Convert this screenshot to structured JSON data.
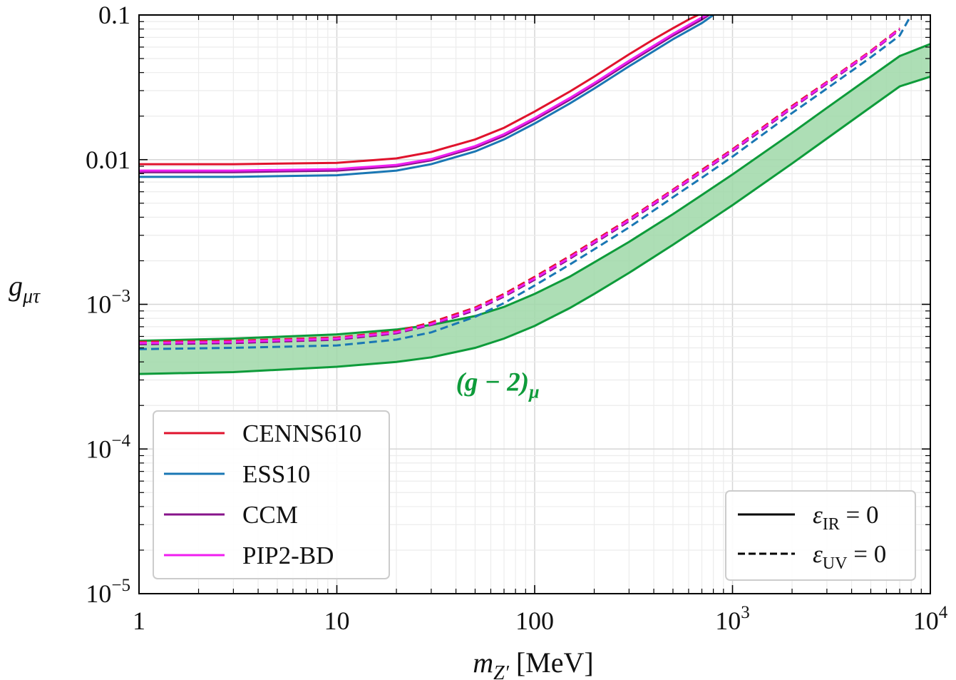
{
  "chart_data": {
    "type": "line",
    "xscale": "log",
    "yscale": "log",
    "xlim": [
      1,
      10000
    ],
    "ylim": [
      1e-05,
      0.1
    ],
    "grid": true,
    "xlabel": {
      "symbol": "m",
      "sub": "Z′",
      "unit": " [MeV]"
    },
    "ylabel": {
      "symbol": "g",
      "sub": "μτ"
    },
    "xtick_labels": [
      {
        "value": 1,
        "base": "1",
        "exp": ""
      },
      {
        "value": 10,
        "base": "10",
        "exp": ""
      },
      {
        "value": 100,
        "base": "100",
        "exp": ""
      },
      {
        "value": 1000,
        "base": "10",
        "exp": "3"
      },
      {
        "value": 10000,
        "base": "10",
        "exp": "4"
      }
    ],
    "ytick_labels": [
      {
        "value": 1e-05,
        "base": "10",
        "exp": "−5"
      },
      {
        "value": 0.0001,
        "base": "10",
        "exp": "−4"
      },
      {
        "value": 0.001,
        "base": "10",
        "exp": "−3"
      },
      {
        "value": 0.01,
        "base": "0.01",
        "exp": ""
      },
      {
        "value": 0.1,
        "base": "0.1",
        "exp": ""
      }
    ],
    "band": {
      "name": "(g − 2)μ",
      "label_main": "(g − 2)",
      "label_sub": "μ",
      "label_at": [
        40,
        0.00029
      ],
      "color": "#0e9b3a",
      "fill": "#9fd8a8",
      "x": [
        1,
        3,
        10,
        20,
        30,
        50,
        70,
        100,
        150,
        200,
        300,
        500,
        700,
        1000,
        2000,
        3000,
        5000,
        7000,
        10000
      ],
      "upper": [
        0.00056,
        0.00058,
        0.00062,
        0.00067,
        0.00072,
        0.00083,
        0.00096,
        0.00118,
        0.00155,
        0.00195,
        0.0027,
        0.0042,
        0.0057,
        0.0079,
        0.0153,
        0.0228,
        0.0375,
        0.052,
        0.063
      ],
      "lower": [
        0.00033,
        0.00034,
        0.00037,
        0.0004,
        0.00043,
        0.0005,
        0.00058,
        0.00071,
        0.00094,
        0.00118,
        0.00165,
        0.00258,
        0.0035,
        0.00485,
        0.0094,
        0.014,
        0.0231,
        0.0321,
        0.0375
      ]
    },
    "series": [
      {
        "name": "CENNS610",
        "color": "#e0132d",
        "solid": {
          "x": [
            1,
            3,
            10,
            20,
            30,
            50,
            70,
            100,
            150,
            200,
            300,
            400,
            500,
            600,
            700
          ],
          "y": [
            0.0093,
            0.0093,
            0.0095,
            0.0102,
            0.0113,
            0.0138,
            0.0166,
            0.0215,
            0.0295,
            0.0375,
            0.0535,
            0.068,
            0.081,
            0.093,
            0.103
          ]
        },
        "dashed": {
          "x": [
            1,
            3,
            10,
            20,
            30,
            50,
            70,
            100,
            150,
            200,
            300,
            500,
            700,
            1000,
            2000,
            3000,
            5000,
            7000
          ],
          "y": [
            0.00055,
            0.00056,
            0.00059,
            0.00065,
            0.00075,
            0.00095,
            0.00118,
            0.00155,
            0.00215,
            0.00275,
            0.0039,
            0.0062,
            0.0085,
            0.0118,
            0.0235,
            0.0345,
            0.0565,
            0.081
          ]
        }
      },
      {
        "name": "ESS10",
        "color": "#1a77b4",
        "solid": {
          "x": [
            1,
            3,
            10,
            20,
            30,
            50,
            70,
            100,
            150,
            200,
            300,
            500,
            700,
            800
          ],
          "y": [
            0.0076,
            0.0076,
            0.0078,
            0.0084,
            0.0093,
            0.0114,
            0.0138,
            0.0178,
            0.0244,
            0.031,
            0.0442,
            0.068,
            0.088,
            0.1
          ]
        },
        "dashed": {
          "x": [
            1,
            3,
            10,
            20,
            30,
            50,
            70,
            100,
            150,
            200,
            300,
            500,
            700,
            1000,
            2000,
            3000,
            5000,
            7000,
            8000
          ],
          "y": [
            0.00049,
            0.0005,
            0.00052,
            0.00057,
            0.00064,
            0.00082,
            0.00102,
            0.00135,
            0.00188,
            0.0024,
            0.0034,
            0.0055,
            0.0075,
            0.0105,
            0.021,
            0.031,
            0.051,
            0.072,
            0.1
          ]
        }
      },
      {
        "name": "CCM",
        "color": "#87138a",
        "solid": {
          "x": [
            1,
            3,
            10,
            20,
            30,
            50,
            70,
            100,
            150,
            200,
            300,
            500,
            700,
            760
          ],
          "y": [
            0.0082,
            0.0082,
            0.0084,
            0.009,
            0.0099,
            0.0121,
            0.0146,
            0.0189,
            0.0259,
            0.0329,
            0.0469,
            0.072,
            0.093,
            0.1
          ]
        },
        "dashed": {
          "x": [
            1,
            3,
            10,
            20,
            30,
            50,
            70,
            100,
            150,
            200,
            300,
            500,
            700,
            1000,
            2000,
            3000,
            5000,
            7000
          ],
          "y": [
            0.00053,
            0.00054,
            0.00057,
            0.00063,
            0.00072,
            0.00091,
            0.00113,
            0.00148,
            0.00206,
            0.00264,
            0.00375,
            0.006,
            0.0082,
            0.0114,
            0.0227,
            0.0335,
            0.055,
            0.079
          ]
        }
      },
      {
        "name": "PIP2-BD",
        "color": "#f01ef0",
        "solid": {
          "x": [
            1,
            3,
            10,
            20,
            30,
            50,
            70,
            100,
            150,
            200,
            300,
            500,
            700,
            740
          ],
          "y": [
            0.0084,
            0.0084,
            0.0086,
            0.0092,
            0.0101,
            0.0124,
            0.015,
            0.0194,
            0.0266,
            0.0338,
            0.0482,
            0.074,
            0.096,
            0.1
          ]
        },
        "dashed": {
          "x": [
            1,
            3,
            10,
            20,
            30,
            50,
            70,
            100,
            150,
            200,
            300,
            500,
            700,
            1000,
            2000,
            3000,
            5000,
            7000
          ],
          "y": [
            0.00054,
            0.00055,
            0.00058,
            0.00064,
            0.00073,
            0.00093,
            0.00115,
            0.00151,
            0.0021,
            0.00269,
            0.00382,
            0.0061,
            0.0083,
            0.0116,
            0.023,
            0.034,
            0.0558,
            0.08
          ]
        }
      }
    ],
    "legend_series": {
      "position": "lower-left",
      "entries": [
        "CENNS610",
        "ESS10",
        "CCM",
        "PIP2-BD"
      ]
    },
    "legend_style": {
      "position": "lower-right",
      "entries": [
        {
          "style": "solid",
          "symbol": "ε",
          "sub": "IR",
          "rest": " = 0"
        },
        {
          "style": "dashed",
          "symbol": "ε",
          "sub": "UV",
          "rest": " = 0"
        }
      ]
    }
  }
}
